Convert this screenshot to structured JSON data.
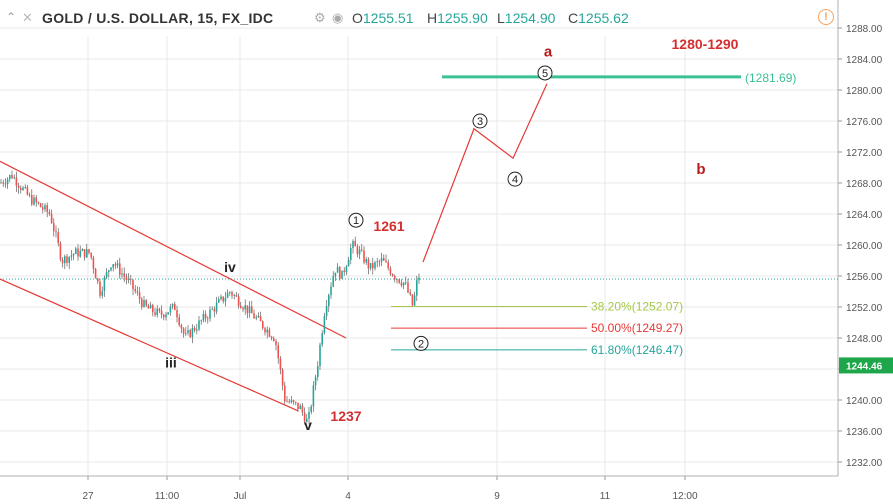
{
  "header": {
    "symbol": "GOLD / U.S. DOLLAR, 15, FX_IDC",
    "open_label": "O",
    "open": "1255.51",
    "high_label": "H",
    "high": "1255.90",
    "low_label": "L",
    "low": "1254.90",
    "close_label": "C",
    "close": "1255.62",
    "alert_glyph": "!"
  },
  "chart_data": {
    "type": "candlestick",
    "title": "GOLD / U.S. DOLLAR, 15, FX_IDC",
    "y_axis": {
      "ticks": [
        "1288.00",
        "1284.00",
        "1280.00",
        "1276.00",
        "1272.00",
        "1268.00",
        "1264.00",
        "1260.00",
        "1256.00",
        "1252.00",
        "1248.00",
        "1244.00",
        "1240.00",
        "1236.00",
        "1232.00"
      ],
      "min": 1230.5,
      "max": 1290.5,
      "current_price": "1244.46",
      "last_price": 1255.62
    },
    "x_axis": {
      "ticks": [
        "27",
        "11:00",
        "Jul",
        "4",
        "9",
        "11",
        "12:00"
      ]
    },
    "waves": {
      "minor": [
        {
          "label": "iii",
          "price": 1244.2
        },
        {
          "label": "iv",
          "price": 1256.5
        },
        {
          "label": "v",
          "price": 1236.1
        }
      ],
      "circled": [
        {
          "label": "1",
          "price": 1263.2
        },
        {
          "label": "2",
          "price": 1247.3
        },
        {
          "label": "3",
          "price": 1276.0
        },
        {
          "label": "4",
          "price": 1268.5
        },
        {
          "label": "5",
          "price": 1282.2
        }
      ],
      "major": [
        {
          "label": "a",
          "price": 1285.0
        },
        {
          "label": "b",
          "price": 1269.8
        }
      ]
    },
    "annotations": [
      "1261",
      "1237",
      "1280-1290"
    ],
    "target_line": {
      "label": "(1281.69)",
      "price": 1281.69
    },
    "fib_levels": [
      {
        "label": "38.20%(1252.07)",
        "price": 1252.07,
        "color": "#a5c84a"
      },
      {
        "label": "50.00%(1249.27)",
        "price": 1249.27,
        "color": "#e53935"
      },
      {
        "label": "61.80%(1246.47)",
        "price": 1246.47,
        "color": "#26a69a"
      }
    ],
    "projection_path": [
      1257.8,
      1275.0,
      1271.2,
      1280.8
    ],
    "channel": {
      "upper": [
        1270.8,
        1248.0
      ],
      "lower": [
        1255.6,
        1238.6
      ]
    },
    "colors": {
      "up": "#26a69a",
      "down": "#ef5350",
      "wave": "#e53935",
      "target": "#3cc096",
      "grid": "#e9e9e9",
      "axis_text": "#555555",
      "price_badge": "#1ea64a"
    }
  }
}
